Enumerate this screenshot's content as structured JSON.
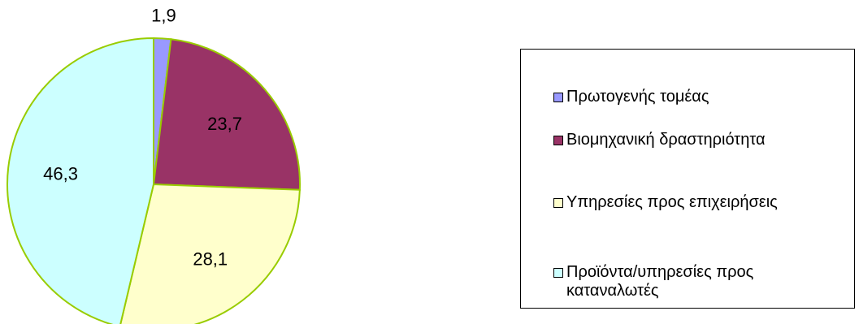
{
  "chart_data": {
    "type": "pie",
    "categories": [
      "Πρωτογενής τομέας",
      "Βιομηχανική δραστηριότητα",
      "Υπηρεσίες προς επιχειρήσεις",
      "Προϊόντα/υπηρεσίες προς καταναλωτές"
    ],
    "values": [
      1.9,
      23.7,
      28.1,
      46.3
    ],
    "data_labels": [
      "1,9",
      "23,7",
      "28,1",
      "46,3"
    ],
    "colors": [
      "#9999FF",
      "#993366",
      "#FFFFCC",
      "#CCFFFF"
    ],
    "slice_border_color": "#99CC00",
    "start_angle": "12 o'clock",
    "direction": "clockwise",
    "legend_position": "right",
    "title": ""
  }
}
